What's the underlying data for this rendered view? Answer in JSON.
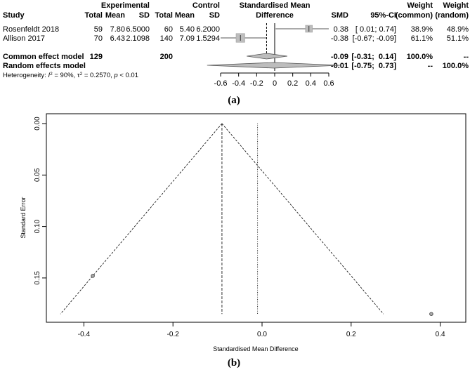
{
  "chart_data": [
    {
      "type": "forest",
      "panel_label": "(a)",
      "headers": {
        "study": "Study",
        "experimental": "Experimental",
        "control": "Control",
        "total": "Total",
        "mean": "Mean",
        "sd": "SD",
        "smd_title_line1": "Standardised Mean",
        "smd_title_line2": "Difference",
        "smd": "SMD",
        "ci": "95%-CI",
        "weight": "Weight",
        "common": "(common)",
        "random": "(random)"
      },
      "studies": [
        {
          "name": "Rosenfeldt 2018",
          "exp_total": "59",
          "exp_mean": "7.80",
          "exp_sd": "6.5000",
          "ctrl_total": "60",
          "ctrl_mean": "5.40",
          "ctrl_sd": "6.2000",
          "smd": 0.38,
          "ci_low": 0.01,
          "ci_high": 0.74,
          "smd_text": "0.38",
          "ci_text": "[ 0.01;  0.74]",
          "w_common": "38.9%",
          "w_random": "48.9%",
          "box_weight": 0.389
        },
        {
          "name": "Allison 2017",
          "exp_total": "70",
          "exp_mean": "6.43",
          "exp_sd": "2.1098",
          "ctrl_total": "140",
          "ctrl_mean": "7.09",
          "ctrl_sd": "1.5294",
          "smd": -0.38,
          "ci_low": -0.67,
          "ci_high": -0.09,
          "smd_text": "-0.38",
          "ci_text": "[-0.67; -0.09]",
          "w_common": "61.1%",
          "w_random": "51.1%",
          "box_weight": 0.611
        }
      ],
      "common_model": {
        "label": "Common effect model",
        "exp_total": "129",
        "ctrl_total": "200",
        "smd": -0.09,
        "ci_low": -0.31,
        "ci_high": 0.14,
        "smd_text": "-0.09",
        "ci_text": "[-0.31;  0.14]",
        "w_common": "100.0%",
        "w_random": "--"
      },
      "random_model": {
        "label": "Random effects model",
        "smd": -0.01,
        "ci_low": -0.75,
        "ci_high": 0.73,
        "smd_text": "-0.01",
        "ci_text": "[-0.75;  0.73]",
        "w_common": "--",
        "w_random": "100.0%"
      },
      "heterogeneity": {
        "prefix": "Heterogeneity: ",
        "i2_sym": "I",
        "i2_value": " = 90%, ",
        "tau2_sym": "τ",
        "tau2_value": " = 0.2570, ",
        "p_sym": "p",
        "p_value": " < 0.01"
      },
      "xaxis": {
        "ticks": [
          -0.6,
          -0.4,
          -0.2,
          0,
          0.2,
          0.4,
          0.6
        ],
        "tick_labels": [
          "-0.6",
          "-0.4",
          "-0.2",
          "0",
          "0.2",
          "0.4",
          "0.6"
        ],
        "xlim": [
          -0.6,
          0.6
        ]
      }
    },
    {
      "type": "funnel",
      "panel_label": "(b)",
      "xlabel": "Standardised Mean Difference",
      "ylabel": "Standard Error",
      "xlim": [
        -0.46,
        0.41
      ],
      "ylim": [
        0.187,
        0.0
      ],
      "x_ticks": [
        -0.4,
        -0.2,
        0.0,
        0.2,
        0.4
      ],
      "x_tick_labels": [
        "-0.4",
        "-0.2",
        "0.0",
        "0.2",
        "0.4"
      ],
      "y_ticks": [
        0.0,
        0.05,
        0.1,
        0.15
      ],
      "y_tick_labels": [
        "0.00",
        "0.05",
        "0.10",
        "0.15"
      ],
      "common_estimate": -0.09,
      "random_estimate": -0.01,
      "funnel_se_max": 0.185,
      "points": [
        {
          "x": -0.38,
          "se": 0.148
        },
        {
          "x": 0.38,
          "se": 0.185
        }
      ]
    }
  ]
}
